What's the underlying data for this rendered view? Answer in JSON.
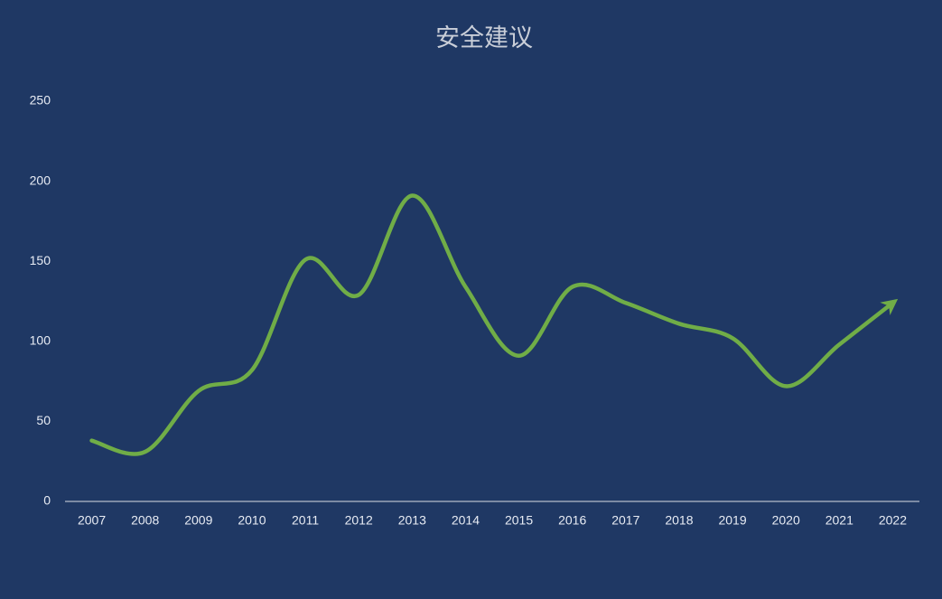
{
  "chart_data": {
    "type": "line",
    "title": "安全建议",
    "categories": [
      "2007",
      "2008",
      "2009",
      "2010",
      "2011",
      "2012",
      "2013",
      "2014",
      "2015",
      "2016",
      "2017",
      "2018",
      "2019",
      "2020",
      "2021",
      "2022"
    ],
    "values": [
      38,
      31,
      69,
      82,
      151,
      129,
      191,
      134,
      91,
      134,
      124,
      111,
      102,
      72,
      98,
      124
    ],
    "color": "#70ad47",
    "smooth": true,
    "arrow_end": true,
    "ylim": [
      0,
      250
    ],
    "yticks": [
      0,
      50,
      100,
      150,
      200,
      250
    ],
    "grid": false
  }
}
